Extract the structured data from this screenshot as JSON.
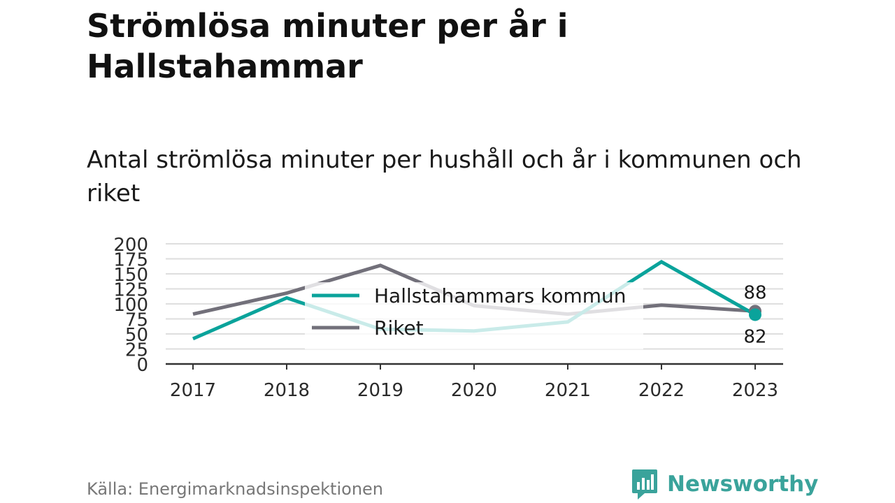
{
  "title": "Strömlösa minuter per år i Hallstahammar",
  "subtitle": "Antal strömlösa minuter per hushåll och år i kommunen och riket",
  "source": "Källa: Energimarknadsinspektionen",
  "brand": {
    "name": "Newsworthy",
    "icon": "newsworthy-logo-icon"
  },
  "colors": {
    "kommun": "#0aa39b",
    "riket": "#72707a"
  },
  "chart_data": {
    "type": "line",
    "categories": [
      "2017",
      "2018",
      "2019",
      "2020",
      "2021",
      "2022",
      "2023"
    ],
    "series": [
      {
        "name": "Hallstahammars kommun",
        "values": [
          42,
          110,
          58,
          55,
          70,
          170,
          82
        ]
      },
      {
        "name": "Riket",
        "values": [
          83,
          118,
          164,
          97,
          83,
          98,
          88
        ]
      }
    ],
    "ylim": [
      0,
      200
    ],
    "yticks": [
      "0",
      "25",
      "50",
      "75",
      "100",
      "125",
      "150",
      "175",
      "200"
    ],
    "end_labels": {
      "kommun": "82",
      "riket": "88"
    },
    "grid": true,
    "legend": "center-overlay"
  }
}
